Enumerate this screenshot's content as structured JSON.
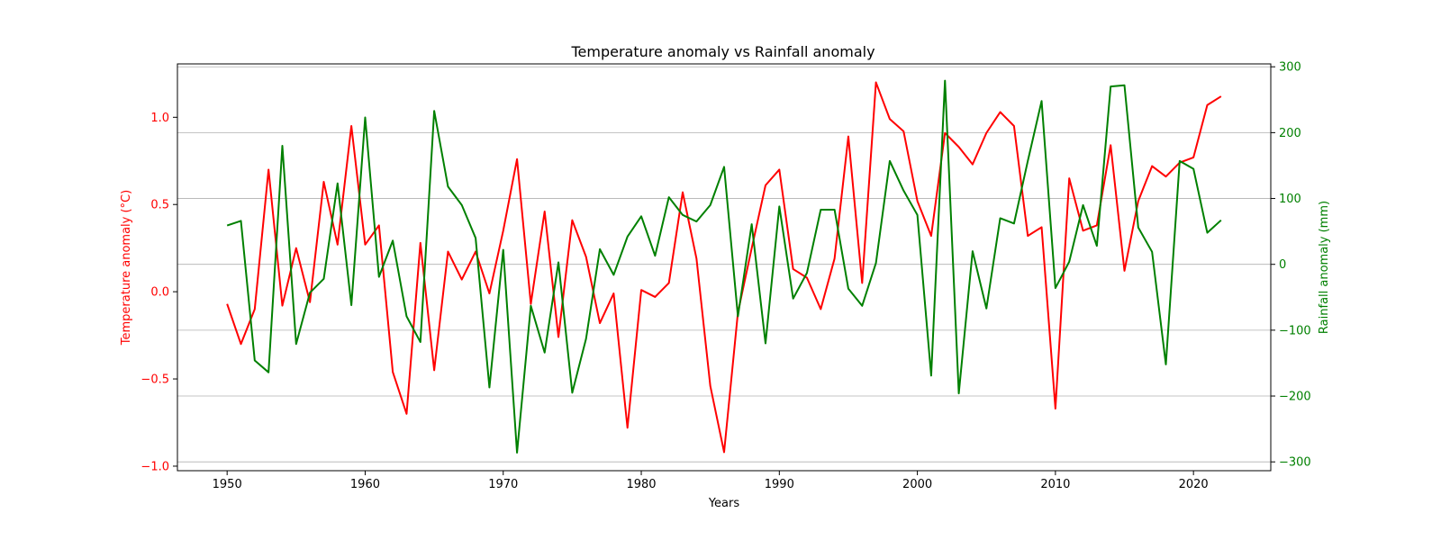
{
  "chart_data": {
    "type": "line",
    "title": "Temperature anomaly vs Rainfall anomaly",
    "xlabel": "Years",
    "ylabel_left": "Temperature anomaly (°C)",
    "ylabel_right": "Rainfall anomaly (mm)",
    "xlim": [
      1946.4,
      2025.6
    ],
    "ylim_left": [
      -1.026,
      1.306
    ],
    "ylim_right": [
      -313.4,
      304.4
    ],
    "x_ticks": [
      1950,
      1960,
      1970,
      1980,
      1990,
      2000,
      2010,
      2020
    ],
    "y_ticks_left": [
      -1.0,
      -0.5,
      0.0,
      0.5,
      1.0
    ],
    "y_ticks_left_labels": [
      "−1.0",
      "−0.5",
      "0.0",
      "0.5",
      "1.0"
    ],
    "y_ticks_right": [
      -300,
      -200,
      -100,
      0,
      100,
      200,
      300
    ],
    "y_ticks_right_labels": [
      "−300",
      "−200",
      "−100",
      "0",
      "100",
      "200",
      "300"
    ],
    "grid": "horizontal lines at right-axis ticks",
    "x": [
      1950,
      1951,
      1952,
      1953,
      1954,
      1955,
      1956,
      1957,
      1958,
      1959,
      1960,
      1961,
      1962,
      1963,
      1964,
      1965,
      1966,
      1967,
      1968,
      1969,
      1970,
      1971,
      1972,
      1973,
      1974,
      1975,
      1976,
      1977,
      1978,
      1979,
      1980,
      1981,
      1982,
      1983,
      1984,
      1985,
      1986,
      1987,
      1988,
      1989,
      1990,
      1991,
      1992,
      1993,
      1994,
      1995,
      1996,
      1997,
      1998,
      1999,
      2000,
      2001,
      2002,
      2003,
      2004,
      2005,
      2006,
      2007,
      2008,
      2009,
      2010,
      2011,
      2012,
      2013,
      2014,
      2015,
      2016,
      2017,
      2018,
      2019,
      2020,
      2021,
      2022
    ],
    "series": [
      {
        "axis": "left",
        "color": "#ff0000",
        "values": [
          -0.07,
          -0.3,
          -0.1,
          0.7,
          -0.08,
          0.25,
          -0.06,
          0.63,
          0.27,
          0.95,
          0.27,
          0.38,
          -0.46,
          -0.7,
          0.28,
          -0.45,
          0.23,
          0.07,
          0.23,
          -0.01,
          0.35,
          0.76,
          -0.07,
          0.46,
          -0.26,
          0.41,
          0.2,
          -0.18,
          -0.01,
          -0.78,
          0.01,
          -0.03,
          0.05,
          0.57,
          0.19,
          -0.54,
          -0.92,
          -0.12,
          0.25,
          0.61,
          0.7,
          0.13,
          0.08,
          -0.1,
          0.19,
          0.89,
          0.05,
          1.2,
          0.99,
          0.92,
          0.52,
          0.32,
          0.91,
          0.83,
          0.73,
          0.91,
          1.03,
          0.95,
          0.32,
          0.37,
          -0.67,
          0.65,
          0.35,
          0.38,
          0.84,
          0.12,
          0.52,
          0.72,
          0.66,
          0.74,
          0.77,
          1.07,
          1.12
        ]
      },
      {
        "axis": "right",
        "color": "#008000",
        "values": [
          59,
          66,
          -146,
          -164,
          180,
          -121,
          -43,
          -22,
          123,
          -62,
          223,
          -19,
          36,
          -79,
          -118,
          233,
          118,
          90,
          40,
          -187,
          22,
          -286,
          -63,
          -134,
          3,
          -195,
          -113,
          23,
          -16,
          42,
          73,
          13,
          102,
          75,
          65,
          90,
          148,
          -79,
          61,
          -120,
          88,
          -52,
          -13,
          83,
          83,
          -37,
          -63,
          2,
          157,
          112,
          75,
          -169,
          279,
          -196,
          20,
          -67,
          70,
          62,
          157,
          248,
          -36,
          4,
          90,
          28,
          270,
          272,
          56,
          19,
          -152,
          157,
          145,
          48,
          67
        ]
      }
    ]
  }
}
